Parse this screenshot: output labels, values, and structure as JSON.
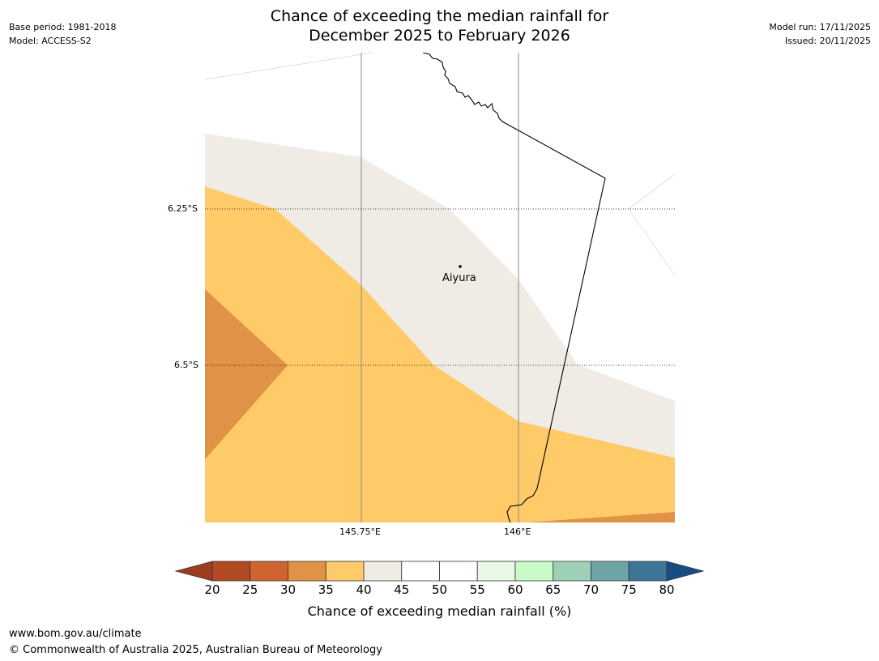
{
  "header": {
    "title_line1": "Chance of exceeding the median rainfall for",
    "title_line2": "December 2025 to February 2026",
    "base_period": "Base period: 1981-2018",
    "model": "Model: ACCESS-S2",
    "model_run": "Model run: 17/11/2025",
    "issued": "Issued: 20/11/2025"
  },
  "map": {
    "lat_labels": [
      "6.25°S",
      "6.5°S"
    ],
    "lon_labels": [
      "145.75°E",
      "146°E"
    ],
    "places": [
      {
        "name": "Aiyura"
      }
    ],
    "zone_colors": {
      "c30_35": "#e09346",
      "c35_40": "#fecb68",
      "c40_45": "#f0ebe5"
    }
  },
  "colorbar": {
    "ticks": [
      "20",
      "25",
      "30",
      "35",
      "40",
      "45",
      "50",
      "55",
      "60",
      "65",
      "70",
      "75",
      "80"
    ],
    "colors": [
      "#9c3d22",
      "#b24a24",
      "#cf6431",
      "#e09346",
      "#fecb68",
      "#f0ebe5",
      "#ffffff",
      "#ffffff",
      "#e9f7e7",
      "#c8fbc8",
      "#9ed0b8",
      "#6ea4a6",
      "#3e7597",
      "#184d84"
    ],
    "label": "Chance of exceeding median rainfall (%)"
  },
  "footer": {
    "url": "www.bom.gov.au/climate",
    "copyright": "© Commonwealth of Australia 2025, Australian Bureau of Meteorology"
  }
}
